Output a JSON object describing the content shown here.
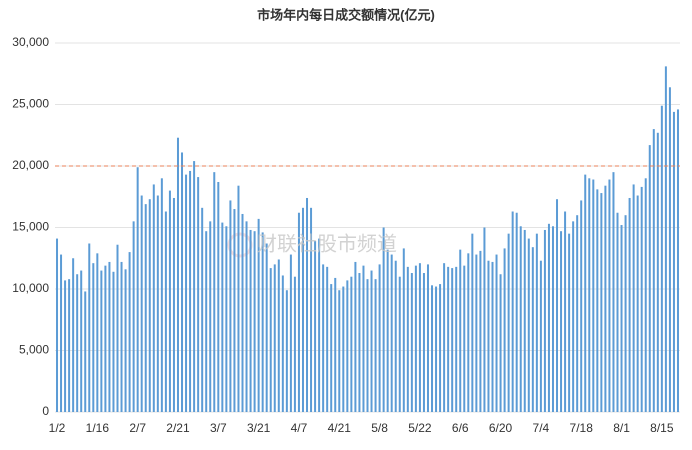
{
  "chart_data": {
    "type": "bar",
    "title": "市场年内每日成交额情况(亿元)",
    "watermark": "财联社股市频道",
    "categories": [
      "1/2",
      null,
      null,
      null,
      null,
      null,
      null,
      null,
      null,
      null,
      "1/16",
      null,
      null,
      null,
      null,
      null,
      null,
      null,
      null,
      null,
      "2/7",
      null,
      null,
      null,
      null,
      null,
      null,
      null,
      null,
      null,
      "2/21",
      null,
      null,
      null,
      null,
      null,
      null,
      null,
      null,
      null,
      "3/7",
      null,
      null,
      null,
      null,
      null,
      null,
      null,
      null,
      null,
      "3/21",
      null,
      null,
      null,
      null,
      null,
      null,
      null,
      null,
      null,
      "4/7",
      null,
      null,
      null,
      null,
      null,
      null,
      null,
      null,
      null,
      "4/21",
      null,
      null,
      null,
      null,
      null,
      null,
      null,
      null,
      null,
      "5/8",
      null,
      null,
      null,
      null,
      null,
      null,
      null,
      null,
      null,
      "5/22",
      null,
      null,
      null,
      null,
      null,
      null,
      null,
      null,
      null,
      "6/6",
      null,
      null,
      null,
      null,
      null,
      null,
      null,
      null,
      null,
      "6/20",
      null,
      null,
      null,
      null,
      null,
      null,
      null,
      null,
      null,
      "7/4",
      null,
      null,
      null,
      null,
      null,
      null,
      null,
      null,
      null,
      "7/18",
      null,
      null,
      null,
      null,
      null,
      null,
      null,
      null,
      null,
      "8/1",
      null,
      null,
      null,
      null,
      null,
      null,
      null,
      null,
      null,
      "8/15",
      null,
      null,
      null,
      null
    ],
    "values": [
      14100,
      12800,
      10700,
      10800,
      12500,
      11200,
      11500,
      9800,
      13700,
      12100,
      12900,
      11500,
      11900,
      12200,
      11400,
      13600,
      12200,
      11600,
      13000,
      15500,
      19900,
      17600,
      16900,
      17300,
      18500,
      17600,
      19000,
      16300,
      18000,
      17400,
      22300,
      21100,
      19300,
      19600,
      20400,
      19100,
      16600,
      14700,
      15500,
      19500,
      18700,
      15400,
      15100,
      17200,
      16500,
      18400,
      16100,
      15500,
      14800,
      14700,
      15700,
      14600,
      13700,
      11700,
      12000,
      12400,
      11100,
      9900,
      12800,
      11000,
      16200,
      16600,
      17400,
      16600,
      13900,
      14100,
      12000,
      11800,
      10400,
      10900,
      9900,
      10200,
      10700,
      11000,
      12200,
      11300,
      11900,
      10800,
      11500,
      10800,
      12000,
      15000,
      13200,
      12800,
      12300,
      11000,
      13300,
      11800,
      11300,
      11900,
      12100,
      11300,
      12000,
      10300,
      10200,
      10400,
      12100,
      11800,
      11700,
      11800,
      13200,
      11900,
      12900,
      14500,
      12800,
      13100,
      15000,
      12300,
      12200,
      12800,
      11200,
      13300,
      14500,
      16300,
      16200,
      15100,
      14800,
      14100,
      13400,
      14500,
      12300,
      14800,
      15300,
      15100,
      17300,
      14700,
      16300,
      14500,
      15500,
      16000,
      17200,
      19300,
      19000,
      18900,
      18100,
      17800,
      18400,
      18900,
      19500,
      16200,
      15200,
      16000,
      17400,
      18500,
      17600,
      18300,
      19000,
      21700,
      23000,
      22700,
      24900,
      28100,
      26400,
      24400,
      24600
    ],
    "color": "#5b9bd5",
    "ylim": [
      0,
      30000
    ],
    "yticks": [
      0,
      {
        "value": 5000,
        "label": "5,000"
      },
      {
        "value": 10000,
        "label": "10,000"
      },
      {
        "value": 15000,
        "label": "15,000"
      },
      {
        "value": 20000,
        "label": "20,000"
      },
      {
        "value": 25000,
        "label": "25,000"
      },
      {
        "value": 30000,
        "label": "30,000"
      }
    ],
    "grid": true,
    "reference_line": {
      "value": 20000,
      "color": "#e8825a"
    }
  }
}
